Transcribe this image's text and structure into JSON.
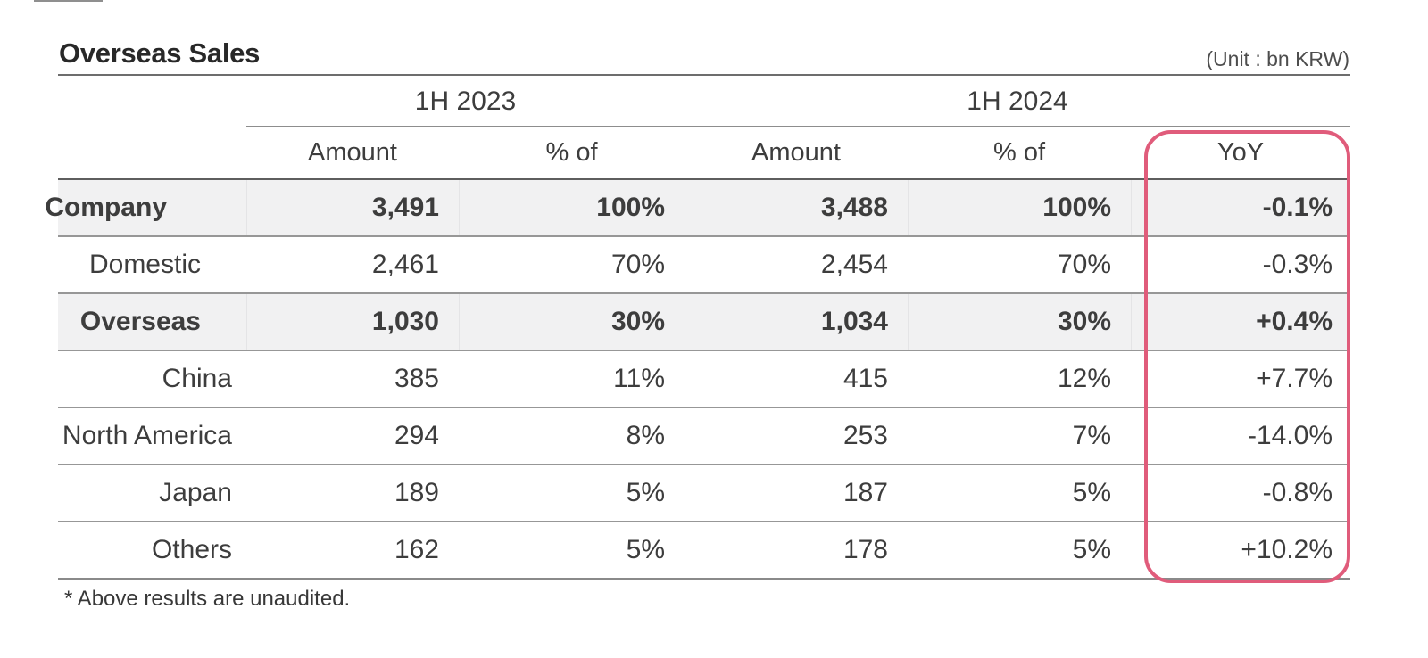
{
  "slide": {
    "title": "Overseas Sales",
    "unit_label": "(Unit : bn KRW)",
    "footnote": "* Above results are unaudited.",
    "highlight_color": "#e05c7b",
    "shaded_row_color": "#f1f1f2"
  },
  "table": {
    "group_headers": {
      "h1_2023": "1H 2023",
      "h1_2024": "1H 2024"
    },
    "column_headers": {
      "amount_2023": "Amount",
      "pct_2023": "% of",
      "amount_2024": "Amount",
      "pct_2024": "% of",
      "yoy": "YoY"
    },
    "rows": [
      {
        "label": "Company",
        "amount_2023": "3,491",
        "pct_2023": "100%",
        "amount_2024": "3,488",
        "pct_2024": "100%",
        "yoy": "-0.1%"
      },
      {
        "label": "Domestic",
        "amount_2023": "2,461",
        "pct_2023": "70%",
        "amount_2024": "2,454",
        "pct_2024": "70%",
        "yoy": "-0.3%"
      },
      {
        "label": "Overseas",
        "amount_2023": "1,030",
        "pct_2023": "30%",
        "amount_2024": "1,034",
        "pct_2024": "30%",
        "yoy": "+0.4%"
      },
      {
        "label": "China",
        "amount_2023": "385",
        "pct_2023": "11%",
        "amount_2024": "415",
        "pct_2024": "12%",
        "yoy": "+7.7%"
      },
      {
        "label": "North America",
        "amount_2023": "294",
        "pct_2023": "8%",
        "amount_2024": "253",
        "pct_2024": "7%",
        "yoy": "-14.0%"
      },
      {
        "label": "Japan",
        "amount_2023": "189",
        "pct_2023": "5%",
        "amount_2024": "187",
        "pct_2024": "5%",
        "yoy": "-0.8%"
      },
      {
        "label": "Others",
        "amount_2023": "162",
        "pct_2023": "5%",
        "amount_2024": "178",
        "pct_2024": "5%",
        "yoy": "+10.2%"
      }
    ]
  }
}
